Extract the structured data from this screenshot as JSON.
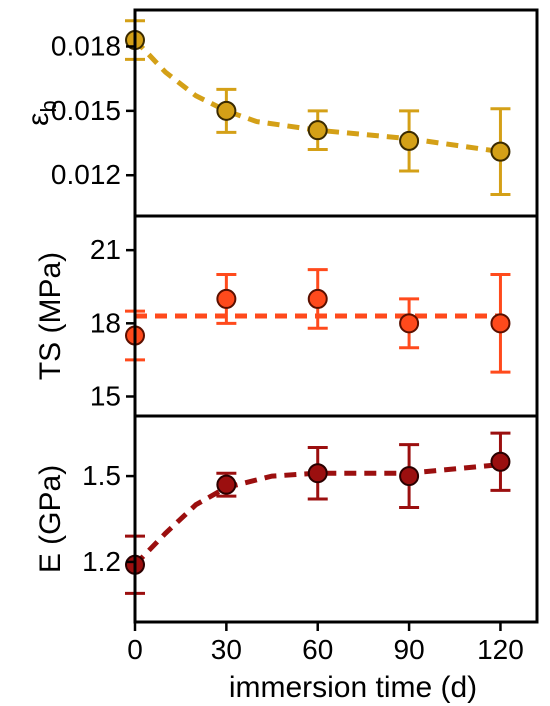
{
  "x_axis": {
    "label": "immersion time (d)",
    "range": [
      0,
      132
    ],
    "ticks": [
      0,
      30,
      60,
      90,
      120
    ],
    "tick_labels": [
      "0",
      "30",
      "60",
      "90",
      "120"
    ]
  },
  "chart_data": [
    {
      "type": "scatter",
      "panel": "top",
      "ylabel": "εb",
      "ylabel_main": "ε",
      "ylabel_sub": "b",
      "ylim": [
        0.0101,
        0.0197
      ],
      "yticks": [
        0.012,
        0.015,
        0.018
      ],
      "ytick_labels": [
        "0.012",
        "0.015",
        "0.018"
      ],
      "x": [
        0,
        30,
        60,
        90,
        120
      ],
      "y": [
        0.0183,
        0.015,
        0.0141,
        0.0136,
        0.0131
      ],
      "y_err": [
        0.0009,
        0.001,
        0.0009,
        0.0014,
        0.002
      ],
      "trend": [
        [
          0,
          0.0183
        ],
        [
          10,
          0.0168
        ],
        [
          20,
          0.0157
        ],
        [
          30,
          0.015
        ],
        [
          40,
          0.0145
        ],
        [
          60,
          0.0141
        ],
        [
          90,
          0.0137
        ],
        [
          120,
          0.0131
        ]
      ],
      "color": "#d4a017",
      "marker_edge": "#3a2a00"
    },
    {
      "type": "scatter",
      "panel": "middle",
      "ylabel": "TS (MPa)",
      "ylim": [
        14.2,
        22.4
      ],
      "yticks": [
        15,
        18,
        21
      ],
      "ytick_labels": [
        "15",
        "18",
        "21"
      ],
      "x": [
        0,
        30,
        60,
        90,
        120
      ],
      "y": [
        17.5,
        19.0,
        19.0,
        18.0,
        18.0
      ],
      "y_err": [
        1.0,
        1.0,
        1.2,
        1.0,
        2.0
      ],
      "trend": [
        [
          0,
          18.3
        ],
        [
          120,
          18.3
        ]
      ],
      "color": "#ff4a1c",
      "marker_edge": "#5a1000"
    },
    {
      "type": "scatter",
      "panel": "bottom",
      "ylabel": "E (GPa)",
      "ylim": [
        0.99,
        1.71
      ],
      "yticks": [
        1.2,
        1.5
      ],
      "ytick_labels": [
        "1.2",
        "1.5"
      ],
      "x": [
        0,
        30,
        60,
        90,
        120
      ],
      "y": [
        1.19,
        1.47,
        1.51,
        1.5,
        1.55
      ],
      "y_err": [
        0.1,
        0.04,
        0.09,
        0.11,
        0.1
      ],
      "trend": [
        [
          0,
          1.19
        ],
        [
          10,
          1.3
        ],
        [
          20,
          1.4
        ],
        [
          30,
          1.46
        ],
        [
          45,
          1.5
        ],
        [
          60,
          1.51
        ],
        [
          90,
          1.51
        ],
        [
          120,
          1.54
        ]
      ],
      "color": "#9b0f0f",
      "marker_edge": "#2a0000"
    }
  ]
}
